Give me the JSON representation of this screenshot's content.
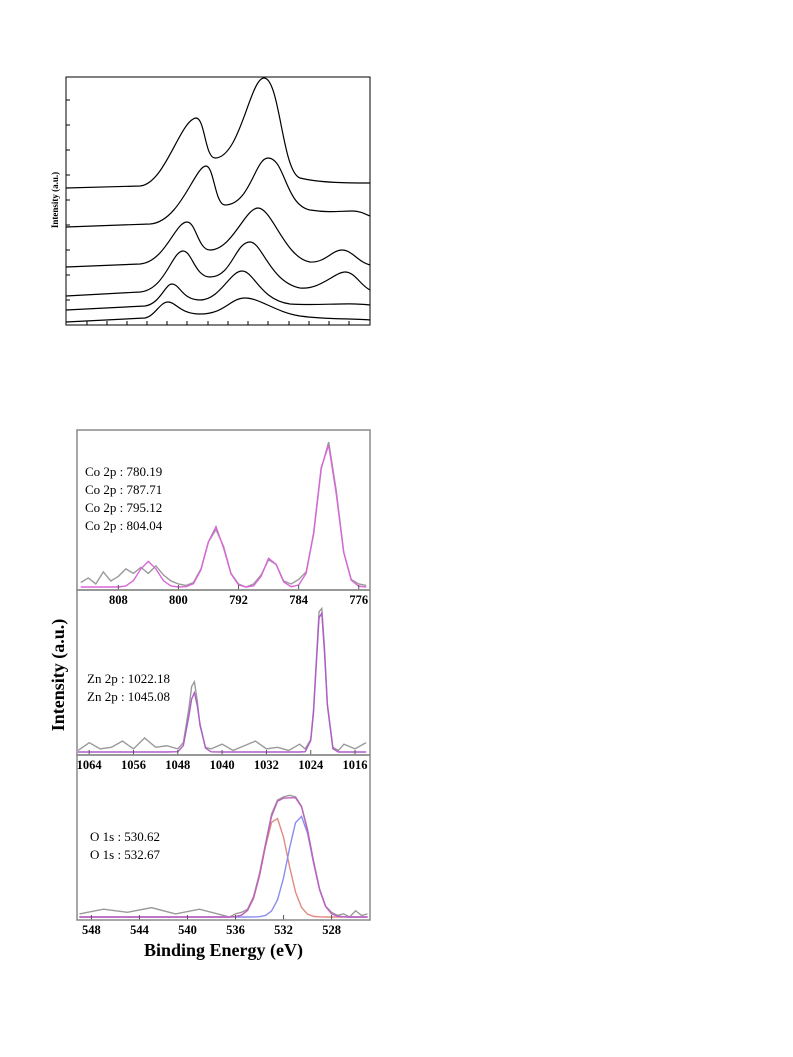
{
  "top_figure": {
    "y_label": "Intensity (a.u.)"
  },
  "chart_data": [
    {
      "type": "line",
      "annotations": [
        "Co 2p : 780.19",
        "Co 2p : 787.71",
        "Co 2p : 795.12",
        "Co 2p : 804.04"
      ],
      "x": [
        813,
        812,
        811,
        810,
        809,
        808,
        807,
        806,
        805,
        804,
        803,
        802,
        801,
        800,
        799,
        798,
        797,
        796,
        795,
        794,
        793,
        792,
        791,
        790,
        789,
        788,
        787,
        786,
        785,
        784,
        783,
        782,
        781,
        780,
        779,
        778,
        777,
        776,
        775
      ],
      "series": [
        {
          "color": "#9a9a9a",
          "values": [
            3,
            6,
            2,
            10,
            4,
            7,
            12,
            9,
            13,
            9,
            14,
            8,
            4,
            2,
            1,
            3,
            12,
            30,
            38,
            27,
            9,
            2,
            0,
            2,
            8,
            18,
            15,
            4,
            2,
            5,
            10,
            35,
            78,
            96,
            64,
            23,
            5,
            2,
            1
          ]
        },
        {
          "color": "#d966d9",
          "values": [
            0,
            0,
            0,
            0,
            0,
            0,
            0.7,
            4.2,
            12,
            17,
            12,
            4.2,
            0.7,
            0,
            0.2,
            2.2,
            11.4,
            30,
            40,
            26,
            8.7,
            1.4,
            0,
            0.8,
            7,
            19,
            15,
            3.4,
            0.2,
            1.3,
            9,
            36,
            79,
            94,
            62,
            23,
            4.6,
            0.5,
            0
          ]
        }
      ],
      "xlim": [
        813.5,
        774.5
      ],
      "ylim": [
        0,
        100
      ],
      "xticks": [
        808,
        800,
        792,
        784,
        776
      ]
    },
    {
      "type": "line",
      "y_label": "Intensity (a.u.)",
      "annotations": [
        "Zn 2p : 1022.18",
        "Zn 2p : 1045.08"
      ],
      "x": [
        1066,
        1064,
        1062,
        1060,
        1058,
        1056,
        1054,
        1052,
        1050,
        1048,
        1047,
        1046,
        1045.5,
        1045,
        1044.5,
        1044,
        1043,
        1042,
        1040,
        1038,
        1036,
        1034,
        1032,
        1030,
        1028,
        1026,
        1025,
        1024,
        1023.5,
        1023,
        1022.5,
        1022,
        1021.5,
        1021,
        1020,
        1019,
        1018,
        1016,
        1014
      ],
      "series": [
        {
          "color": "#9a9a9a",
          "values": [
            1,
            6,
            2,
            3,
            7,
            2,
            9,
            3,
            4,
            2,
            6,
            28,
            42,
            45,
            33,
            17,
            3,
            2,
            5,
            1,
            4,
            7,
            2,
            3,
            1,
            5,
            2,
            8,
            27,
            58,
            90,
            92,
            66,
            31,
            3,
            1,
            5,
            2,
            6
          ]
        },
        {
          "color": "#b05cc8",
          "values": [
            0,
            0,
            0,
            0,
            0,
            0,
            0,
            0,
            0,
            0.2,
            4.1,
            23,
            34,
            38,
            30,
            18,
            2.5,
            0.1,
            0,
            0,
            0,
            0,
            0,
            0,
            0,
            0,
            0.2,
            7.3,
            25,
            56,
            86,
            89,
            63,
            30,
            2.1,
            0,
            0,
            0,
            0
          ]
        }
      ],
      "xlim": [
        1066.2,
        1013.3
      ],
      "ylim": [
        0,
        100
      ],
      "xticks": [
        1064,
        1056,
        1048,
        1040,
        1032,
        1024,
        1016
      ]
    },
    {
      "type": "line",
      "x_label": "Binding Energy (eV)",
      "annotations": [
        "O 1s : 530.62",
        "O 1s : 532.67"
      ],
      "x": [
        549,
        547,
        545,
        543,
        541,
        539,
        537,
        536.5,
        536,
        535.5,
        535,
        534.5,
        534,
        533.5,
        533,
        532.5,
        532,
        531.5,
        531,
        530.5,
        530,
        529.5,
        529,
        528.5,
        528,
        527.5,
        527,
        526.5,
        526,
        525.5,
        525
      ],
      "series": [
        {
          "color": "#9a9a9a",
          "values": [
            2,
            5,
            3,
            6,
            2,
            5,
            1,
            0,
            2,
            3,
            5,
            13,
            28,
            47,
            66,
            75,
            77,
            78,
            77,
            71,
            56,
            36,
            18,
            7,
            3,
            1,
            2,
            0,
            4,
            1,
            2
          ]
        },
        {
          "color": "#e08a80",
          "values": [
            0,
            0,
            0,
            0,
            0,
            0,
            0,
            0,
            0.25,
            1.2,
            4.2,
            12,
            26.5,
            45.3,
            60.6,
            63.1,
            51.1,
            32.3,
            15.9,
            6.1,
            1.8,
            0.4,
            0.1,
            0,
            0,
            0,
            0,
            0,
            0,
            0,
            0
          ]
        },
        {
          "color": "#8c8cf0",
          "values": [
            0,
            0,
            0,
            0,
            0,
            0,
            0,
            0,
            0,
            0,
            0,
            0.05,
            0.2,
            1.0,
            3.8,
            11.1,
            25.1,
            44.1,
            60.5,
            64.5,
            53.6,
            34.7,
            17.5,
            6.8,
            2.1,
            0.5,
            0.1,
            0,
            0,
            0,
            0
          ]
        },
        {
          "color": "#c060c0",
          "values": [
            0,
            0,
            0,
            0,
            0,
            0,
            0,
            0,
            0.3,
            1.2,
            4.2,
            12,
            26.7,
            46.3,
            64.4,
            74.2,
            76.2,
            76.4,
            76.4,
            70.6,
            55.4,
            35.1,
            17.6,
            6.8,
            2.1,
            0.5,
            0.1,
            0,
            0,
            0,
            0
          ]
        }
      ],
      "xlim": [
        549.2,
        524.8
      ],
      "ylim": [
        0,
        100
      ],
      "xticks": [
        548,
        544,
        540,
        536,
        532,
        528
      ]
    }
  ]
}
